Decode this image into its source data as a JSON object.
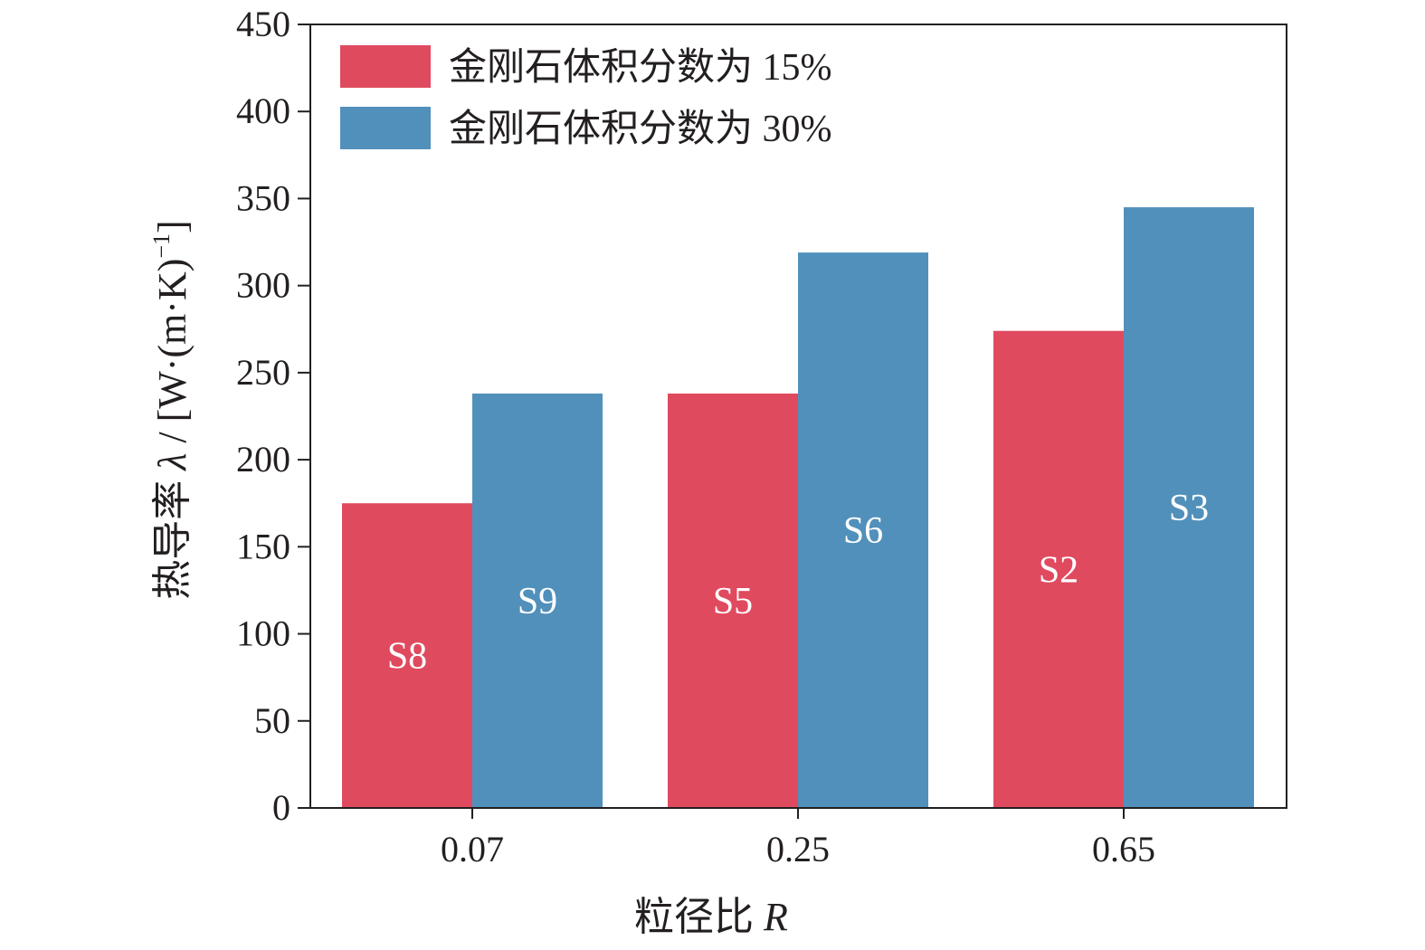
{
  "colors": {
    "series1": "#e04a5f",
    "series2": "#5190bb",
    "axis": "#231f20"
  },
  "axis": {
    "ylabel_prefix": "热导率 ",
    "ylabel_symbol": "λ",
    "ylabel_unit": " / [W·(m·K)",
    "ylabel_sup": "−1",
    "ylabel_close": "]",
    "xlabel_prefix": "粒径比 ",
    "xlabel_symbol": "R"
  },
  "legend": {
    "position": "top-left",
    "items": [
      {
        "label": "金刚石体积分数为 15%",
        "color": "#e04a5f"
      },
      {
        "label": "金刚石体积分数为 30%",
        "color": "#5190bb"
      }
    ]
  },
  "chart_data": {
    "type": "bar",
    "categories": [
      "0.07",
      "0.25",
      "0.65"
    ],
    "series": [
      {
        "name": "金刚石体积分数为 15%",
        "values": [
          175,
          238,
          274
        ],
        "labels": [
          "S8",
          "S5",
          "S2"
        ]
      },
      {
        "name": "金刚石体积分数为 30%",
        "values": [
          238,
          319,
          345
        ],
        "labels": [
          "S9",
          "S6",
          "S3"
        ]
      }
    ],
    "ylim": [
      0,
      450
    ],
    "yticks": [
      0,
      50,
      100,
      150,
      200,
      250,
      300,
      350,
      400,
      450
    ],
    "grid": false,
    "legend_position": "top-left"
  }
}
